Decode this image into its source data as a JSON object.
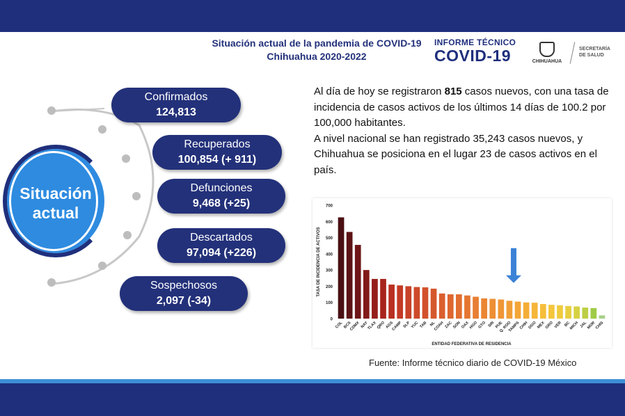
{
  "header": {
    "title_line1": "Situación actual de la pandemia de COVID-19",
    "title_line2": "Chihuahua 2020-2022",
    "logo_line1": "INFORME TÉCNICO",
    "logo_line2": "COVID-19",
    "logo_state": "CHIHUAHUA",
    "logo_secretaria_1": "SECRETARÍA",
    "logo_secretaria_2": "DE SALUD"
  },
  "situacion": {
    "label_line1": "Situación",
    "label_line2": "actual",
    "items": [
      {
        "label": "Confirmados",
        "value": "124,813"
      },
      {
        "label": "Recuperados",
        "value": "100,854 (+ 911)"
      },
      {
        "label": "Defunciones",
        "value": "9,468 (+25)"
      },
      {
        "label": "Descartados",
        "value": "97,094 (+226)"
      },
      {
        "label": "Sospechosos",
        "value": "2,097 (-34)"
      }
    ]
  },
  "paragraph": {
    "p1_pre": "Al día de hoy se registraron ",
    "p1_bold": "815",
    "p1_post": " casos nuevos, con una tasa de incidencia de casos activos de los últimos 14 días de 100.2 por 100,000 habitantes.",
    "p2": "A nivel nacional se han registrado 35,243 casos nuevos, y Chihuahua se posiciona en el lugar 23 de casos activos en el país."
  },
  "source": "Fuente: Informe técnico diario de COVID-19 México",
  "colors": {
    "navy": "#23317a",
    "accent_blue": "#2e8be0",
    "arrow": "#3b82d6"
  },
  "chart_data": {
    "type": "bar",
    "xlabel": "ENTIDAD FEDERATIVA DE RESIDENCIA",
    "ylabel": "TASA DE INCIDENCIA DE ACTIVOS",
    "ylim": [
      0,
      700
    ],
    "yticks": [
      0,
      100,
      200,
      300,
      400,
      500,
      600,
      700
    ],
    "categories": [
      "COL",
      "BCS",
      "CDMX",
      "NAY",
      "TLAX",
      "QRO",
      "AGS",
      "CAMP",
      "SLP",
      "YUC",
      "TAB",
      "NL",
      "COAH",
      "ZAC",
      "SON",
      "OAX",
      "HGO",
      "GTO",
      "SIN",
      "PUE",
      "Q. ROO",
      "TAMPS",
      "CHIH",
      "DGO",
      "MEX",
      "GRO",
      "VER",
      "BC",
      "MICH",
      "JAL",
      "MOR",
      "CHIS"
    ],
    "values": [
      625,
      535,
      455,
      300,
      245,
      245,
      210,
      205,
      200,
      195,
      193,
      185,
      155,
      150,
      150,
      143,
      135,
      125,
      122,
      118,
      110,
      105,
      100,
      98,
      90,
      85,
      82,
      78,
      75,
      68,
      65,
      20
    ],
    "colors": [
      "#4a0f12",
      "#5c1214",
      "#6e1517",
      "#821b19",
      "#951f1b",
      "#a8241d",
      "#b92f22",
      "#c33a25",
      "#c84228",
      "#cd4a2a",
      "#d2512c",
      "#d6582d",
      "#da5f2e",
      "#de662f",
      "#e26e30",
      "#e57631",
      "#e87e32",
      "#eb8633",
      "#ed8e34",
      "#ef9635",
      "#f19e36",
      "#f3a637",
      "#f4ae38",
      "#f5b639",
      "#f6be3a",
      "#f5c53c",
      "#f0cb3e",
      "#e7cf40",
      "#d6d142",
      "#bccf44",
      "#9fcb47",
      "#a7d18a"
    ],
    "annotation": "arrow-down-over-CHIH"
  }
}
